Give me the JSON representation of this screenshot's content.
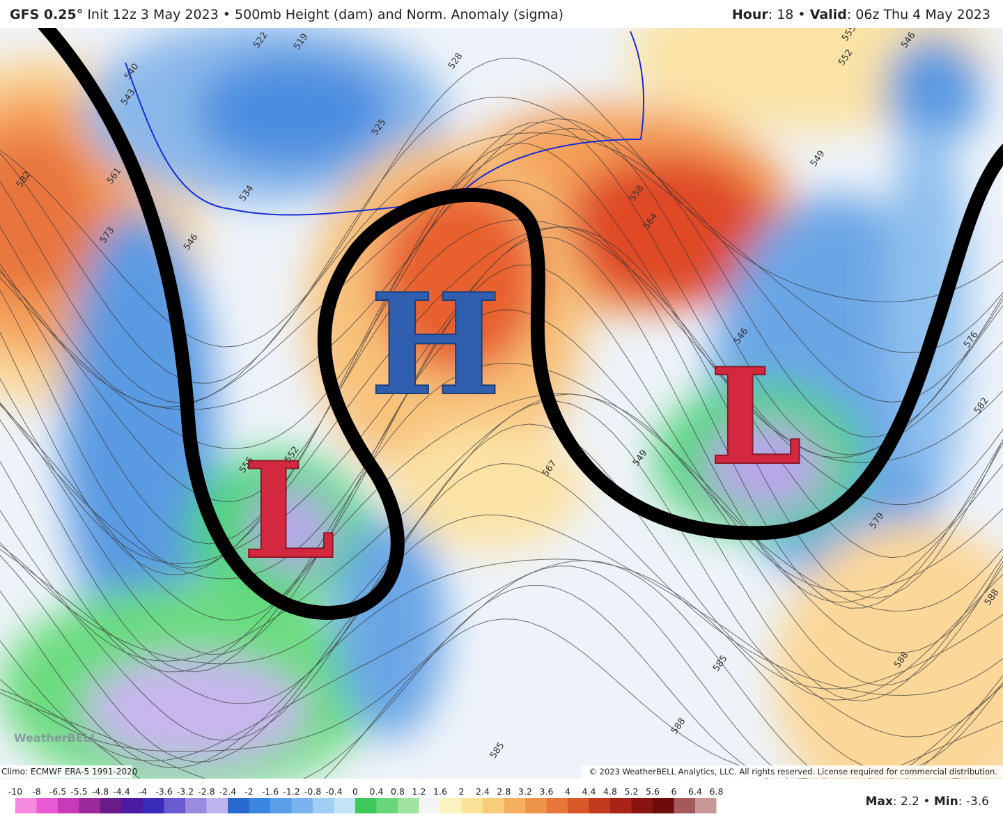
{
  "header": {
    "model": "GFS 0.25°",
    "init": "Init 12z 3 May 2023",
    "product": "500mb Height (dam) and Norm. Anomaly (sigma)",
    "hour_label": "Hour",
    "hour": "18",
    "valid_label": "Valid",
    "valid": "06z Thu 4 May 2023"
  },
  "annotations": {
    "high": "H",
    "low_west": "L",
    "low_east": "L"
  },
  "contour_labels": [
    "519",
    "522",
    "528",
    "525",
    "534",
    "540",
    "543",
    "546",
    "561",
    "573",
    "582",
    "549",
    "552",
    "555",
    "558",
    "564",
    "567",
    "576",
    "579",
    "582",
    "585",
    "588",
    "588",
    "546",
    "549",
    "552",
    "555",
    "546",
    "585",
    "588"
  ],
  "logo": "WeatherBELL",
  "climo": "Climo: ECMWF ERA-5 1991-2020",
  "copyright": "© 2023 WeatherBELL Analytics, LLC. All rights reserved. License required for commercial distribution.",
  "colorbar": {
    "ticks": [
      -10,
      -8,
      -6.5,
      -5.5,
      -4.8,
      -4.4,
      -4,
      -3.6,
      -3.2,
      -2.8,
      -2.4,
      -2,
      -1.6,
      -1.2,
      -0.8,
      -0.4,
      0,
      0.4,
      0.8,
      1.2,
      1.6,
      2,
      2.4,
      2.8,
      3.2,
      3.6,
      4,
      4.4,
      4.8,
      5.2,
      5.6,
      6,
      6.4,
      6.8
    ]
  },
  "stats": {
    "max_label": "Max",
    "max": "2.2",
    "min_label": "Min",
    "min": "-3.6"
  }
}
